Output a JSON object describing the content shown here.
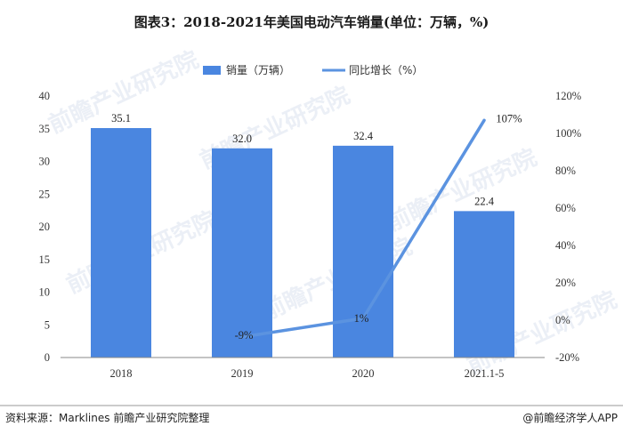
{
  "title": "图表3：2018-2021年美国电动汽车销量(单位：万辆，%)",
  "source": "资料来源：Marklines 前瞻产业研究院整理",
  "brand": "@前瞻经济学人APP",
  "watermark": "前瞻产业研究院",
  "colors": {
    "bar": "#4a86e0",
    "line": "#5b93e0"
  },
  "chart_data": {
    "type": "bar",
    "categories": [
      "2018",
      "2019",
      "2020",
      "2021.1-5"
    ],
    "series": [
      {
        "name": "销量（万辆）",
        "type": "bar",
        "axis": "left",
        "values": [
          35.1,
          32.0,
          32.4,
          22.4
        ],
        "labels": [
          "35.1",
          "32.0",
          "32.4",
          "22.4"
        ]
      },
      {
        "name": "同比增长（%）",
        "type": "line",
        "axis": "right",
        "values": [
          null,
          -9,
          1,
          107
        ],
        "labels": [
          "",
          "-9%",
          "1%",
          "107%"
        ]
      }
    ],
    "y_left": {
      "min": 0,
      "max": 40,
      "ticks": [
        "0",
        "5",
        "10",
        "15",
        "20",
        "25",
        "30",
        "35",
        "40"
      ]
    },
    "y_right": {
      "min": -20,
      "max": 120,
      "ticks": [
        "-20%",
        "0%",
        "20%",
        "40%",
        "60%",
        "80%",
        "100%",
        "120%"
      ]
    },
    "legend": "top-center",
    "grid": false
  }
}
